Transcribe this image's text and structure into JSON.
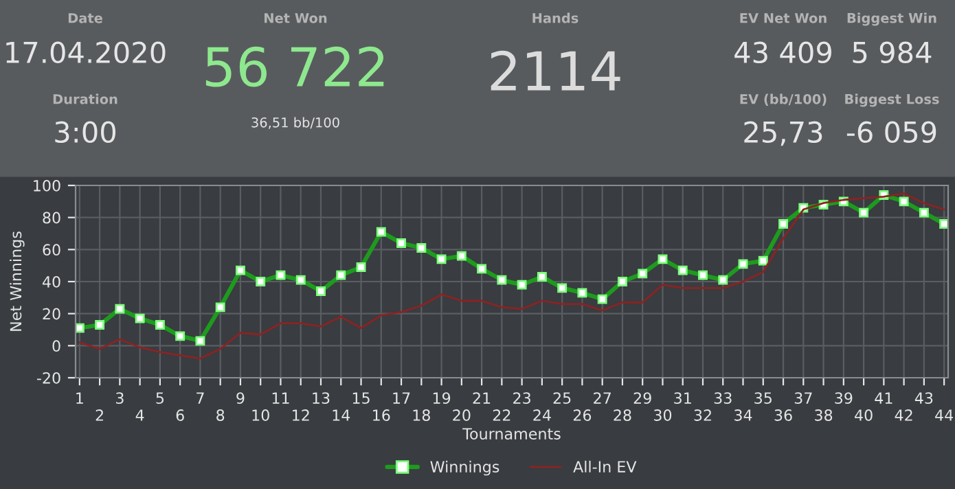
{
  "chart_data": {
    "type": "line",
    "xlabel": "Tournaments",
    "ylabel": "Net Winnings",
    "annotations": [
      "Date",
      "17.04.2020",
      "Duration",
      "3:00",
      "Net Won",
      "56 722",
      "36,51 bb/100",
      "Hands",
      "2114",
      "EV Net Won",
      "43 409",
      "EV (bb/100)",
      "25,73",
      "Biggest Win",
      "5 984",
      "Biggest Loss",
      "-6 059"
    ],
    "categories": [
      "1",
      "2",
      "3",
      "4",
      "5",
      "6",
      "7",
      "8",
      "9",
      "10",
      "11",
      "12",
      "13",
      "14",
      "15",
      "16",
      "17",
      "18",
      "19",
      "20",
      "21",
      "22",
      "23",
      "24",
      "25",
      "26",
      "27",
      "28",
      "29",
      "30",
      "31",
      "32",
      "33",
      "34",
      "35",
      "36",
      "37",
      "38",
      "39",
      "40",
      "41",
      "42",
      "43",
      "44"
    ],
    "series": [
      {
        "name": "Winnings",
        "color": "#1e9a1e",
        "marker": "square",
        "values": [
          11,
          13,
          23,
          17,
          13,
          6,
          3,
          24,
          47,
          40,
          44,
          41,
          34,
          44,
          49,
          71,
          64,
          61,
          54,
          56,
          48,
          41,
          38,
          43,
          36,
          33,
          29,
          40,
          45,
          54,
          47,
          44,
          41,
          51,
          53,
          76,
          86,
          88,
          90,
          83,
          94,
          90,
          83,
          76
        ]
      },
      {
        "name": "All-In EV",
        "color": "#8b2323",
        "marker": "none",
        "values": [
          2,
          -2,
          4,
          -1,
          -4,
          -6,
          -8,
          -2,
          8,
          7,
          14,
          14,
          12,
          18,
          11,
          19,
          21,
          25,
          32,
          28,
          28,
          24,
          23,
          28,
          26,
          26,
          22,
          27,
          27,
          38,
          36,
          36,
          36,
          40,
          46,
          67,
          85,
          89,
          91,
          92,
          93,
          95,
          89,
          85
        ]
      }
    ],
    "ylim": [
      -20,
      100
    ],
    "yticks": [
      -20,
      0,
      20,
      40,
      60,
      80,
      100
    ],
    "grid": true,
    "legend": "bottom"
  }
}
